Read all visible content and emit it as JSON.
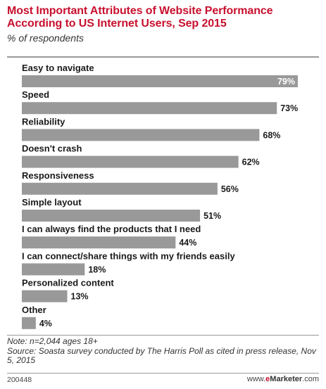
{
  "chart_data": {
    "type": "bar",
    "orientation": "horizontal",
    "title": "Most Important Attributes of Website Performance According to US Internet Users, Sep 2015",
    "subtitle": "% of respondents",
    "categories": [
      "Easy to navigate",
      "Speed",
      "Reliability",
      "Doesn't crash",
      "Responsiveness",
      "Simple layout",
      "I can always find the products that I need",
      "I can connect/share things with my friends easily",
      "Personalized content",
      "Other"
    ],
    "values": [
      79,
      73,
      68,
      62,
      56,
      51,
      44,
      18,
      13,
      4
    ],
    "value_labels": [
      "79%",
      "73%",
      "68%",
      "62%",
      "56%",
      "51%",
      "44%",
      "18%",
      "13%",
      "4%"
    ],
    "xlim": [
      0,
      79
    ],
    "bar_color": "#999999",
    "grid": false,
    "legend": "none"
  },
  "footer": {
    "note": "Note: n=2,044 ages 18+",
    "source": "Source: Soasta survey conducted by The Harris Poll as cited in press release, Nov 5, 2015",
    "code": "200448",
    "brand_prefix": "www.",
    "brand_e": "e",
    "brand_name": "Marketer",
    "brand_suffix": ".com"
  },
  "colors": {
    "title": "#c8102e",
    "bar": "#999999"
  }
}
